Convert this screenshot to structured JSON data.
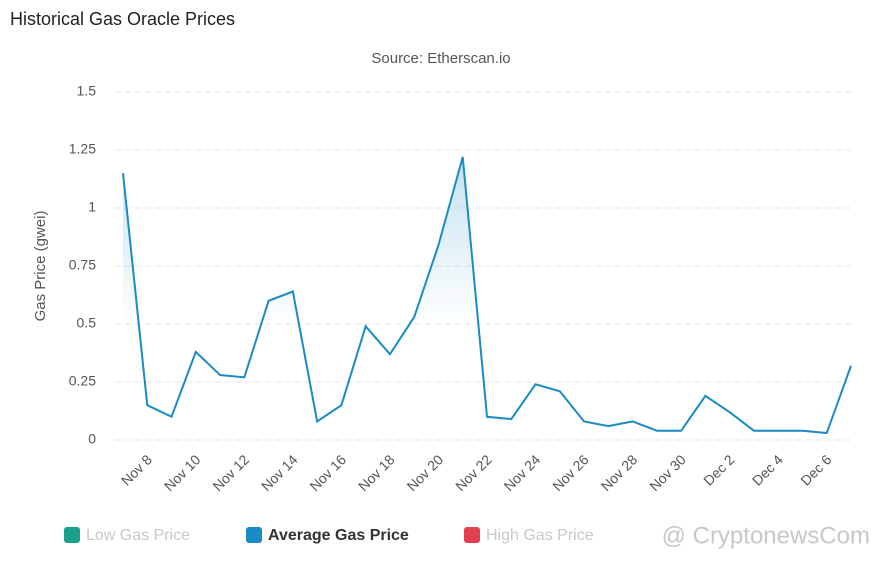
{
  "chart_data": {
    "type": "line",
    "title": "Historical Gas Oracle Prices",
    "subtitle": "Source: Etherscan.io",
    "y_label": "Gas Price (gwei)",
    "categories": [
      null,
      "Nov 8",
      null,
      "Nov 10",
      null,
      "Nov 12",
      null,
      "Nov 14",
      null,
      "Nov 16",
      null,
      "Nov 18",
      null,
      "Nov 20",
      null,
      "Nov 22",
      null,
      "Nov 24",
      null,
      "Nov 26",
      null,
      "Nov 28",
      null,
      "Nov 30",
      null,
      "Dec 2",
      null,
      "Dec 4",
      null,
      "Dec 6",
      null
    ],
    "series": [
      {
        "name": "Average Gas Price",
        "color": "#1a8bc4",
        "values": [
          1.15,
          0.15,
          0.1,
          0.38,
          0.28,
          0.27,
          0.6,
          0.64,
          0.08,
          0.15,
          0.49,
          0.37,
          0.53,
          0.84,
          1.22,
          0.1,
          0.09,
          0.24,
          0.21,
          0.08,
          0.06,
          0.08,
          0.04,
          0.04,
          0.19,
          0.12,
          0.04,
          0.04,
          0.04,
          0.03,
          0.32
        ]
      }
    ],
    "legend": [
      {
        "name": "Low Gas Price",
        "color": "#1aa08a",
        "hidden": true
      },
      {
        "name": "Average Gas Price",
        "color": "#1a8bc4",
        "hidden": false
      },
      {
        "name": "High Gas Price",
        "color": "#e04050",
        "hidden": true
      }
    ],
    "ylim": [
      0,
      1.5
    ],
    "yticks": [
      0,
      0.25,
      0.5,
      0.75,
      1,
      1.25,
      1.5
    ],
    "grid": true,
    "watermark": "@ CryptonewsCom"
  }
}
